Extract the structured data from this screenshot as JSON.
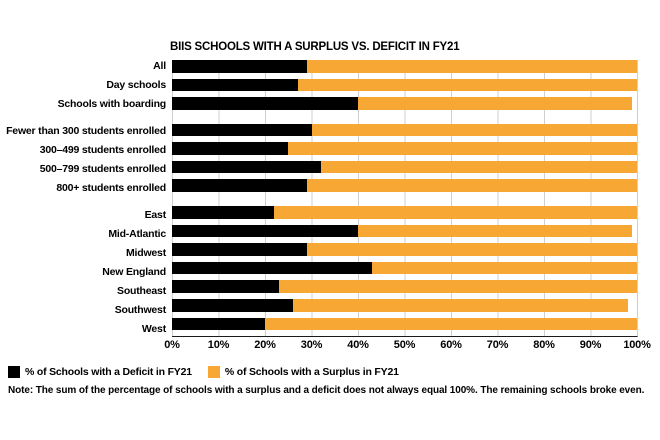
{
  "title": "BIIS SCHOOLS WITH A SURPLUS VS. DEFICIT IN FY21",
  "note": "Note: The sum of the percentage of schools with a surplus and a deficit does not always equal 100%. The remaining schools broke even.",
  "legend": {
    "items": [
      {
        "label": "% of Schools with a Deficit in FY21",
        "color": "#000000",
        "swatch_name": "deficit-legend-swatch"
      },
      {
        "label": "% of Schools with a Surplus in FY21",
        "color": "#F7A733",
        "swatch_name": "surplus-legend-swatch"
      }
    ]
  },
  "colors": {
    "deficit": "#000000",
    "surplus": "#F7A733",
    "gridline": "#cfcfcf"
  },
  "chart_data": {
    "type": "bar",
    "orientation": "horizontal",
    "stacked": true,
    "title": "BIIS SCHOOLS WITH A SURPLUS VS. DEFICIT IN FY21",
    "xlabel": "",
    "ylabel": "",
    "xlim": [
      0,
      100
    ],
    "x_ticks": [
      "0%",
      "10%",
      "20%",
      "30%",
      "40%",
      "50%",
      "60%",
      "70%",
      "80%",
      "90%",
      "100%"
    ],
    "grid": true,
    "legend_position": "bottom-left",
    "series": [
      {
        "name": "% of Schools with a Deficit in FY21",
        "color": "#000000"
      },
      {
        "name": "% of Schools with a Surplus in FY21",
        "color": "#F7A733"
      }
    ],
    "groups": [
      {
        "name": "school-type",
        "rows": [
          {
            "label": "All",
            "deficit": 29,
            "surplus": 71
          },
          {
            "label": "Day schools",
            "deficit": 27,
            "surplus": 73
          },
          {
            "label": "Schools with boarding",
            "deficit": 40,
            "surplus": 59
          }
        ]
      },
      {
        "name": "enrollment-size",
        "rows": [
          {
            "label": "Fewer than 300 students enrolled",
            "deficit": 30,
            "surplus": 70
          },
          {
            "label": "300–499 students enrolled",
            "deficit": 25,
            "surplus": 75
          },
          {
            "label": "500–799 students enrolled",
            "deficit": 32,
            "surplus": 68
          },
          {
            "label": "800+ students enrolled",
            "deficit": 29,
            "surplus": 71
          }
        ]
      },
      {
        "name": "region",
        "rows": [
          {
            "label": "East",
            "deficit": 22,
            "surplus": 78
          },
          {
            "label": "Mid-Atlantic",
            "deficit": 40,
            "surplus": 59
          },
          {
            "label": "Midwest",
            "deficit": 29,
            "surplus": 71
          },
          {
            "label": "New England",
            "deficit": 43,
            "surplus": 57
          },
          {
            "label": "Southeast",
            "deficit": 23,
            "surplus": 77
          },
          {
            "label": "Southwest",
            "deficit": 26,
            "surplus": 72
          },
          {
            "label": "West",
            "deficit": 20,
            "surplus": 80
          }
        ]
      }
    ]
  }
}
